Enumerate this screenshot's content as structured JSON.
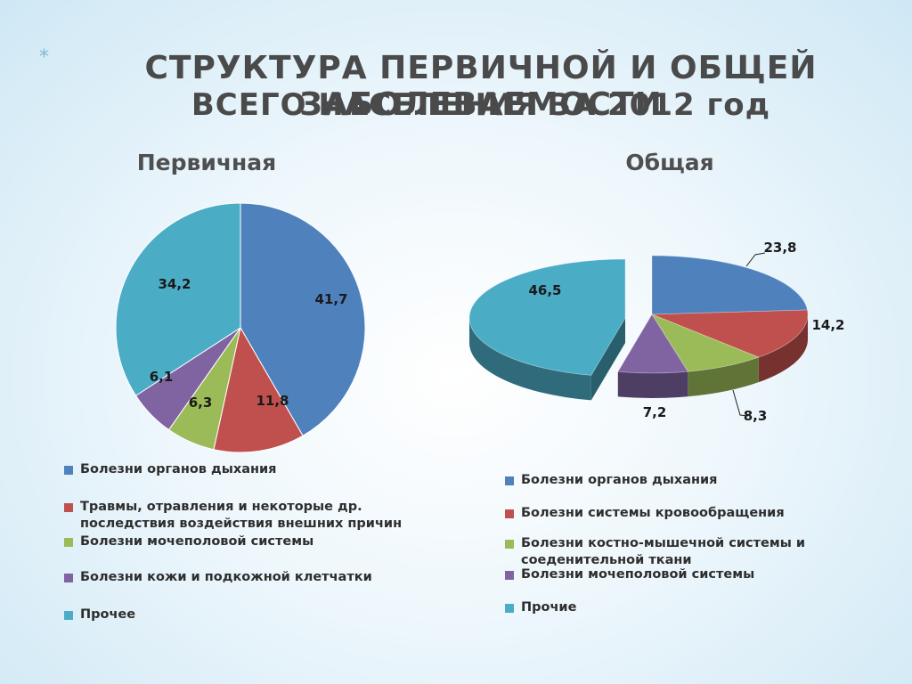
{
  "page": {
    "bullet": "*",
    "title_line1": "СТРУКТУРА ПЕРВИЧНОЙ И ОБЩЕЙ ЗАБОЛЕВАЕМОСТИ",
    "title_line2": "ВСЕГО НАСЕЛЕНИЯ ЗА 2012 год"
  },
  "chart_data": [
    {
      "type": "pie",
      "title": "Первичная",
      "categories": [
        "Болезни органов дыхания",
        "Травмы, отравления и некоторые др. последствия воздействия внешних причин",
        "Болезни мочеполовой системы",
        "Болезни кожи и подкожной клетчатки",
        "Прочее"
      ],
      "values": [
        41.7,
        11.8,
        6.3,
        6.1,
        34.2
      ],
      "labels": [
        "41,7",
        "11,8",
        "6,3",
        "6,1",
        "34,2"
      ],
      "colors": [
        "#4f81bd",
        "#c0504d",
        "#9bbb59",
        "#8064a2",
        "#4bacc6"
      ],
      "legend_position": "bottom"
    },
    {
      "type": "pie",
      "style": "3d",
      "exploded": [
        4
      ],
      "title": "Общая",
      "categories": [
        "Болезни органов дыхания",
        "Болезни системы кровообращения",
        "Болезни костно-мышечной системы и соеденительной ткани",
        "Болезни мочеполовой системы",
        "Прочие"
      ],
      "values": [
        23.8,
        14.2,
        8.3,
        7.2,
        46.5
      ],
      "labels": [
        "23,8",
        "14,2",
        "8,3",
        "7,2",
        "46,5"
      ],
      "colors": [
        "#4f81bd",
        "#c0504d",
        "#9bbb59",
        "#8064a2",
        "#4bacc6"
      ],
      "legend_position": "bottom"
    }
  ]
}
